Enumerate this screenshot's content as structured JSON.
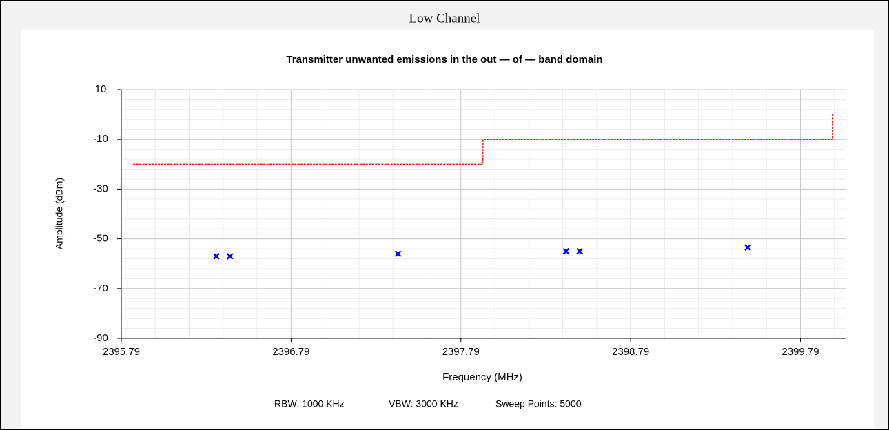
{
  "header": "Low Channel",
  "chart_data": {
    "type": "scatter",
    "title": "Transmitter unwanted emissions in the out — of — band domain",
    "xlabel": "Frequency (MHz)",
    "ylabel": "Amplitude (dBm)",
    "notes": [
      "RBW: 1000 KHz",
      "VBW: 3000 KHz",
      "Sweep Points: 5000"
    ],
    "xlim": [
      2395.79,
      2400.06
    ],
    "ylim": [
      -90,
      10
    ],
    "xticks": [
      2395.79,
      2396.79,
      2397.79,
      2398.79,
      2399.79
    ],
    "yticks": [
      10,
      -10,
      -30,
      -50,
      -70,
      -90
    ],
    "grid": true,
    "minor_grid": true,
    "series": [
      {
        "type": "line",
        "color": "#ff0000",
        "dashed": true,
        "x": [
          2395.86,
          2397.92,
          2397.92,
          2399.98,
          2399.98
        ],
        "values": [
          -20,
          -20,
          -10,
          -10,
          0
        ]
      },
      {
        "type": "scatter",
        "color": "#0000ff",
        "x": [
          2396.35,
          2396.43,
          2397.42,
          2398.41,
          2398.49,
          2399.48
        ],
        "values": [
          -57,
          -57,
          -56,
          -55,
          -55,
          -53.5
        ]
      }
    ]
  }
}
